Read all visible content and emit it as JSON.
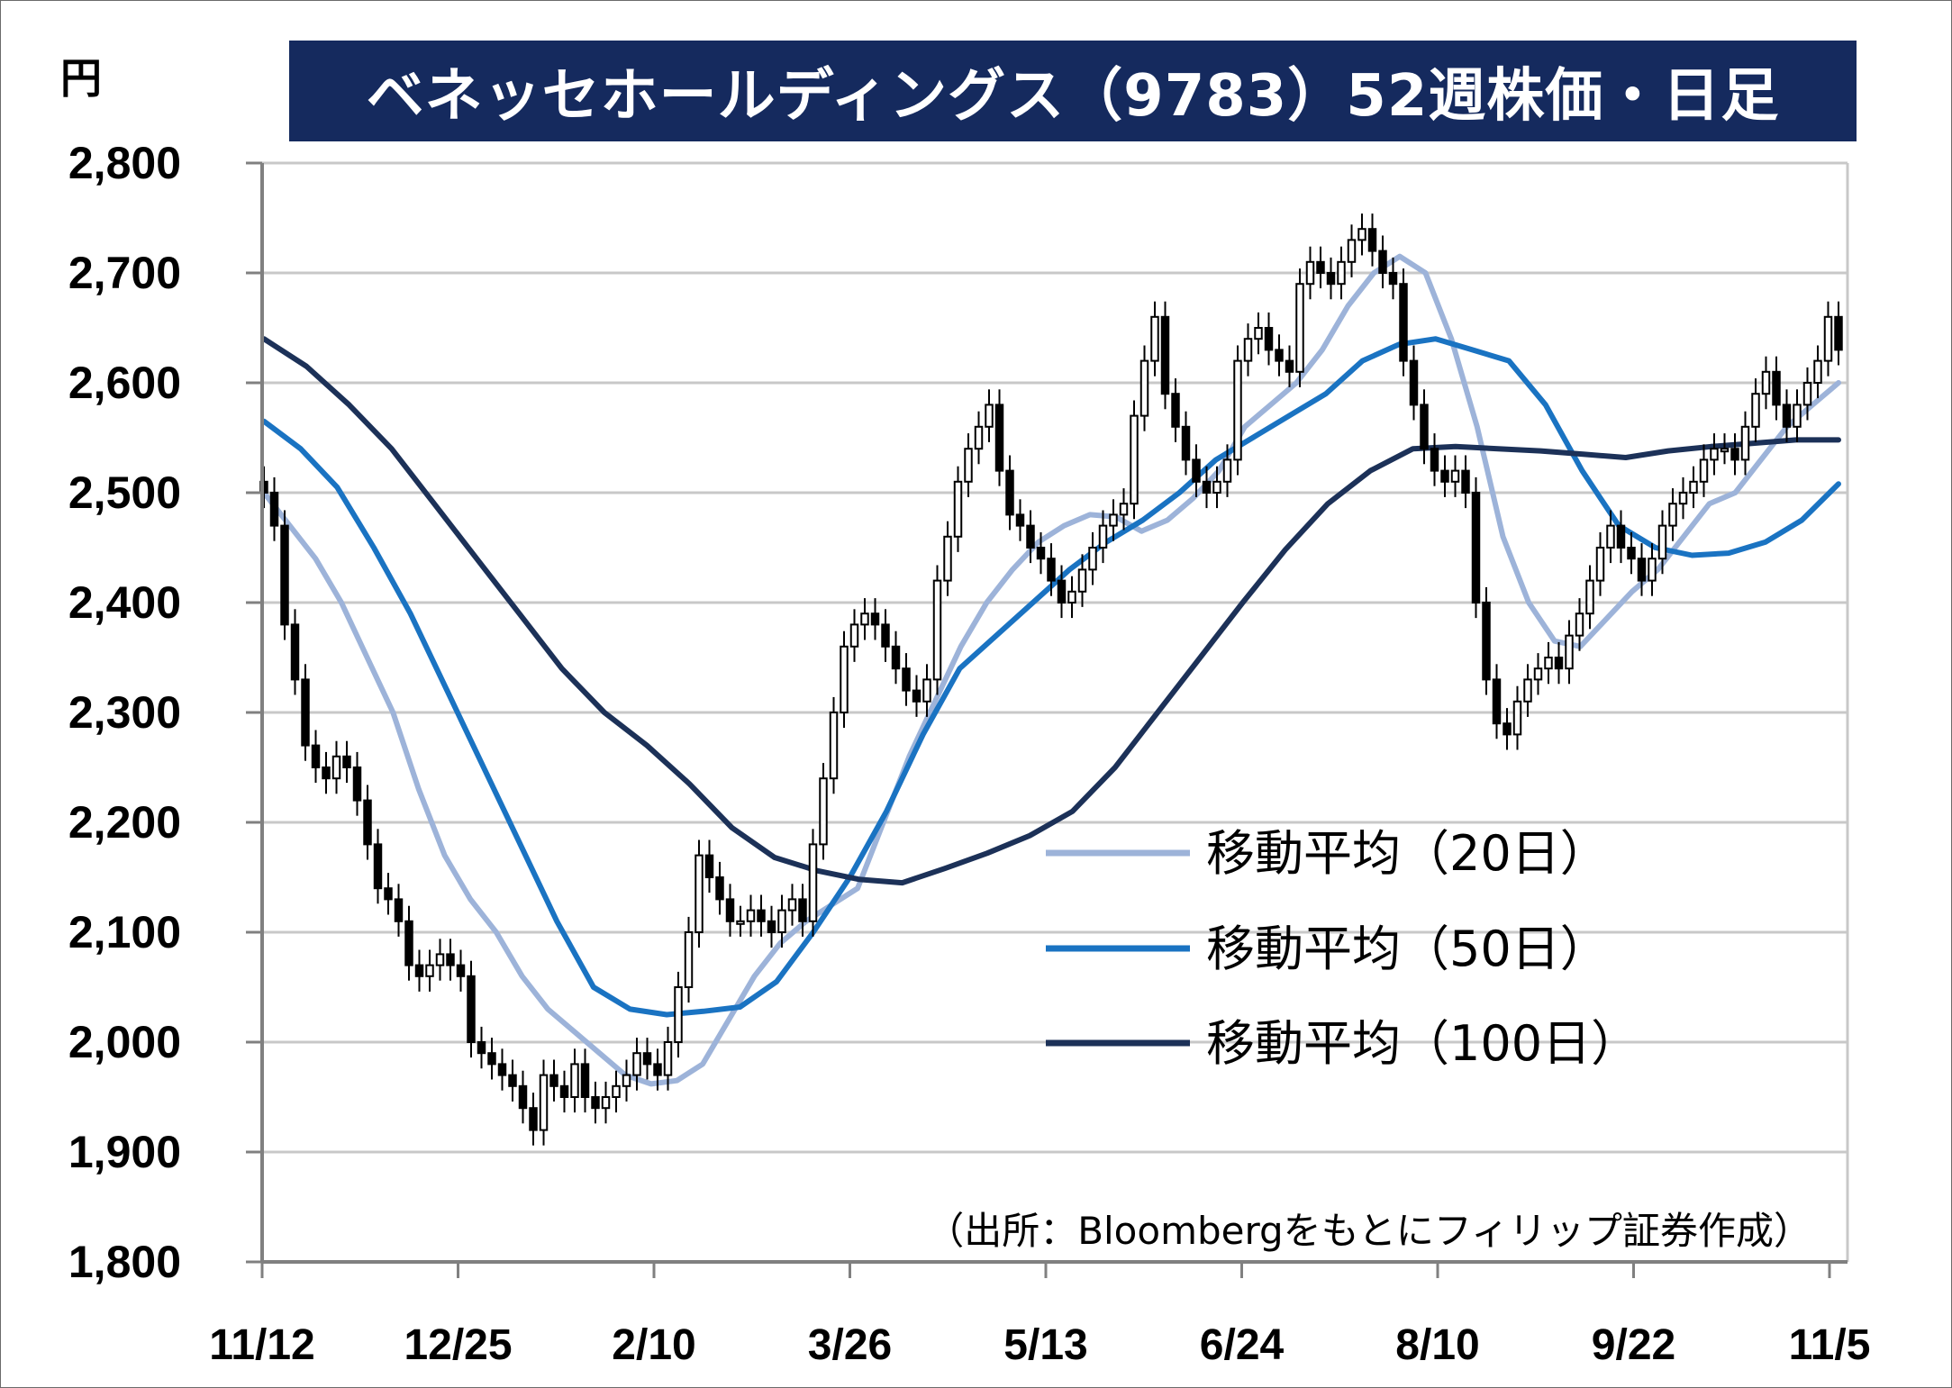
{
  "title": "ベネッセホールディングス（9783）52週株価・日足",
  "unit_label": "円",
  "source": "（出所：Bloombergをもとにフィリップ証券作成）",
  "colors": {
    "title_bg": "#152a5e",
    "ma20": "#9db3d9",
    "ma50": "#1a73c2",
    "ma100": "#1c3158",
    "candle": "#000000",
    "grid": "#c8c8c8",
    "axis": "#808080"
  },
  "chart_data": {
    "type": "candlestick",
    "title": "ベネッセホールディングス（9783）52週株価・日足",
    "ylabel": "円",
    "ylim": [
      1800,
      2800
    ],
    "y_ticks": [
      "2,800",
      "2,700",
      "2,600",
      "2,500",
      "2,400",
      "2,300",
      "2,200",
      "2,100",
      "2,000",
      "1,900",
      "1,800"
    ],
    "x_ticks": [
      "11/12",
      "12/25",
      "2/10",
      "3/26",
      "5/13",
      "6/24",
      "8/10",
      "9/22",
      "11/5"
    ],
    "grid": true,
    "legend_position": "right",
    "candles_close": [
      2500,
      2470,
      2380,
      2330,
      2270,
      2250,
      2240,
      2260,
      2250,
      2220,
      2180,
      2140,
      2130,
      2110,
      2070,
      2060,
      2070,
      2080,
      2070,
      2060,
      2000,
      1990,
      1980,
      1970,
      1960,
      1940,
      1920,
      1970,
      1960,
      1950,
      1980,
      1950,
      1940,
      1950,
      1960,
      1970,
      1990,
      1980,
      1970,
      2000,
      2050,
      2100,
      2170,
      2150,
      2130,
      2110,
      2110,
      2120,
      2110,
      2100,
      2120,
      2130,
      2110,
      2180,
      2240,
      2300,
      2360,
      2380,
      2390,
      2380,
      2360,
      2340,
      2320,
      2310,
      2330,
      2420,
      2460,
      2510,
      2540,
      2560,
      2580,
      2520,
      2480,
      2470,
      2450,
      2440,
      2420,
      2400,
      2410,
      2430,
      2450,
      2470,
      2480,
      2490,
      2570,
      2620,
      2660,
      2590,
      2560,
      2530,
      2510,
      2500,
      2510,
      2530,
      2620,
      2640,
      2650,
      2630,
      2620,
      2610,
      2690,
      2710,
      2700,
      2690,
      2710,
      2730,
      2740,
      2720,
      2700,
      2690,
      2620,
      2580,
      2540,
      2520,
      2510,
      2520,
      2500,
      2400,
      2330,
      2290,
      2280,
      2310,
      2330,
      2340,
      2350,
      2340,
      2370,
      2390,
      2420,
      2450,
      2470,
      2450,
      2440,
      2420,
      2440,
      2470,
      2490,
      2500,
      2510,
      2530,
      2540,
      2540,
      2530,
      2560,
      2590,
      2610,
      2580,
      2560,
      2580,
      2600,
      2620,
      2660,
      2630
    ],
    "series": [
      {
        "name": "移動平均（20日）",
        "values": [
          2500,
          2470,
          2440,
          2400,
          2350,
          2300,
          2230,
          2170,
          2130,
          2100,
          2060,
          2030,
          2010,
          1990,
          1970,
          1962,
          1965,
          1980,
          2020,
          2060,
          2090,
          2110,
          2125,
          2140,
          2200,
          2260,
          2310,
          2360,
          2400,
          2430,
          2455,
          2470,
          2480,
          2478,
          2465,
          2475,
          2495,
          2520,
          2560,
          2580,
          2600,
          2630,
          2670,
          2700,
          2715,
          2700,
          2640,
          2560,
          2460,
          2400,
          2365,
          2360,
          2385,
          2410,
          2430,
          2460,
          2490,
          2500,
          2530,
          2560,
          2580,
          2600
        ]
      },
      {
        "name": "移動平均（50日）",
        "values": [
          2565,
          2540,
          2505,
          2450,
          2390,
          2320,
          2250,
          2180,
          2110,
          2050,
          2030,
          2025,
          2028,
          2032,
          2055,
          2100,
          2150,
          2210,
          2280,
          2340,
          2370,
          2400,
          2430,
          2455,
          2475,
          2500,
          2530,
          2550,
          2570,
          2590,
          2620,
          2635,
          2640,
          2630,
          2620,
          2580,
          2520,
          2470,
          2450,
          2443,
          2445,
          2455,
          2475,
          2508
        ]
      },
      {
        "name": "移動平均（100日）",
        "values": [
          2640,
          2615,
          2580,
          2540,
          2490,
          2440,
          2390,
          2340,
          2300,
          2270,
          2235,
          2195,
          2168,
          2156,
          2148,
          2145,
          2158,
          2172,
          2188,
          2210,
          2250,
          2300,
          2350,
          2400,
          2448,
          2490,
          2520,
          2540,
          2542,
          2540,
          2538,
          2535,
          2532,
          2538,
          2542,
          2545,
          2548,
          2548
        ]
      }
    ]
  }
}
